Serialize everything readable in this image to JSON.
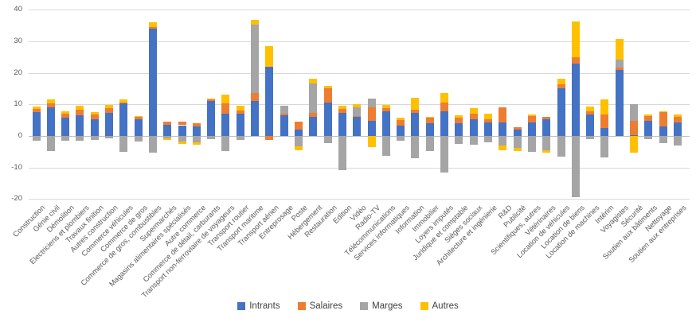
{
  "chart_data": {
    "type": "bar",
    "stacked": true,
    "title": "",
    "xlabel": "",
    "ylabel": "",
    "ylim": [
      -20,
      40
    ],
    "ytick_step": 10,
    "grid": true,
    "legend_position": "bottom",
    "yticks": [
      40,
      30,
      20,
      10,
      0,
      -10,
      -20
    ],
    "categories": [
      "Construction",
      "Génie civil",
      "Démolition",
      "Electriciens et plombiers",
      "Travaux finition",
      "Autres construction",
      "Commerce véhicules",
      "Commerce de gros",
      "Commerce de gros, combustibles",
      "Supermarchés",
      "Magasins alimentaires spécialisés",
      "Autre commerce",
      "Commerce de détail, carburants",
      "Transport non-ferroviaire de voyageurs",
      "Transport routier",
      "Transport maritime",
      "Transport aérien",
      "Entreprosage",
      "Poste",
      "Hébergement",
      "Restauration",
      "Edition",
      "Vidéo",
      "Radio-TV",
      "Télécommunications",
      "Services informatiques",
      "Information",
      "Immobilier",
      "Loyers imputés",
      "Juridique et comptable",
      "Sièges sociaux",
      "Architecture et ingénierie",
      "R&D",
      "Publicité",
      "Scientifiques, autres",
      "Vétérinaires",
      "Location de véhicules",
      "Location de biens",
      "Location de machines",
      "Intérim",
      "Voyagistes",
      "Sécurité",
      "Soutien aux bâtiments",
      "Nettoyage",
      "Soutien aux entreprises"
    ],
    "series": [
      {
        "name": "Intrants",
        "color": "#4472C4",
        "values": [
          7.5,
          9,
          5.8,
          6.5,
          5.4,
          7.3,
          10.3,
          5.3,
          34,
          3.6,
          3.4,
          3,
          11,
          7,
          7,
          11.1,
          22,
          6.5,
          1.9,
          6.1,
          10.7,
          7.3,
          6,
          4.8,
          7.8,
          3.2,
          7.3,
          4,
          7.8,
          4,
          5.3,
          4.2,
          4.4,
          1.9,
          4.4,
          5.3,
          15,
          22.8,
          6.9,
          2.5,
          21,
          0.2,
          4.8,
          2.9,
          4.4
        ]
      },
      {
        "name": "Salaires",
        "color": "#ED7D31",
        "values": [
          1.1,
          1.3,
          1.3,
          1.9,
          1.5,
          1.4,
          0.3,
          0.8,
          0.6,
          1,
          1.2,
          1,
          0.5,
          3.3,
          1,
          2.5,
          -1.2,
          0.5,
          2.7,
          1.2,
          4.5,
          1.2,
          0.3,
          4.2,
          1.1,
          1.8,
          1,
          1.7,
          2.9,
          1.8,
          1.7,
          1.2,
          4.6,
          0.9,
          1.8,
          0.8,
          1.3,
          2.2,
          0.8,
          4.4,
          0.6,
          4.6,
          1.5,
          4.6,
          1.7
        ]
      },
      {
        "name": "Marges",
        "color": "#A5A5A5",
        "values": [
          -1.4,
          -4.9,
          -1.4,
          -1.4,
          -1.2,
          -0.7,
          -5,
          -1.8,
          -5.2,
          -0.8,
          -1.8,
          -2.1,
          -1,
          -4.7,
          -1.3,
          21.7,
          0,
          2.6,
          -3.3,
          9.2,
          -2.3,
          -10.8,
          2.8,
          2.9,
          -6.3,
          -1.4,
          -7,
          -4.7,
          -11.6,
          -2.6,
          -2.7,
          -2.1,
          -3.1,
          -3.9,
          -5,
          -4.6,
          -6.6,
          -19.4,
          -1,
          -6.8,
          2.5,
          5.2,
          -1,
          -2.3,
          -2.9
        ]
      },
      {
        "name": "Autres",
        "color": "#FFC000",
        "values": [
          0.7,
          1.2,
          0.8,
          1.2,
          0.7,
          1,
          1,
          0.3,
          1.5,
          -0.4,
          -0.6,
          -0.6,
          0.4,
          2.8,
          1.5,
          1.5,
          6.5,
          0,
          -1.2,
          1.7,
          0.6,
          1,
          1,
          -3.5,
          0.8,
          0.7,
          3.8,
          0.3,
          2.9,
          0.7,
          1.8,
          1.7,
          -1.5,
          -0.8,
          0.7,
          -0.6,
          1.8,
          11.3,
          1.5,
          4.8,
          6.6,
          -5.2,
          0.6,
          0.4,
          0.7
        ]
      }
    ],
    "legend": [
      {
        "label": "Intrants",
        "color": "#4472C4"
      },
      {
        "label": "Salaires",
        "color": "#ED7D31"
      },
      {
        "label": "Marges",
        "color": "#A5A5A5"
      },
      {
        "label": "Autres",
        "color": "#FFC000"
      }
    ]
  },
  "style": {
    "gridline_color": "#d9d9d9",
    "zero_line_color": "#c0c0c0",
    "tick_text_color": "#595959",
    "legend_text_color": "#3f3f3f",
    "background": "#ffffff"
  }
}
